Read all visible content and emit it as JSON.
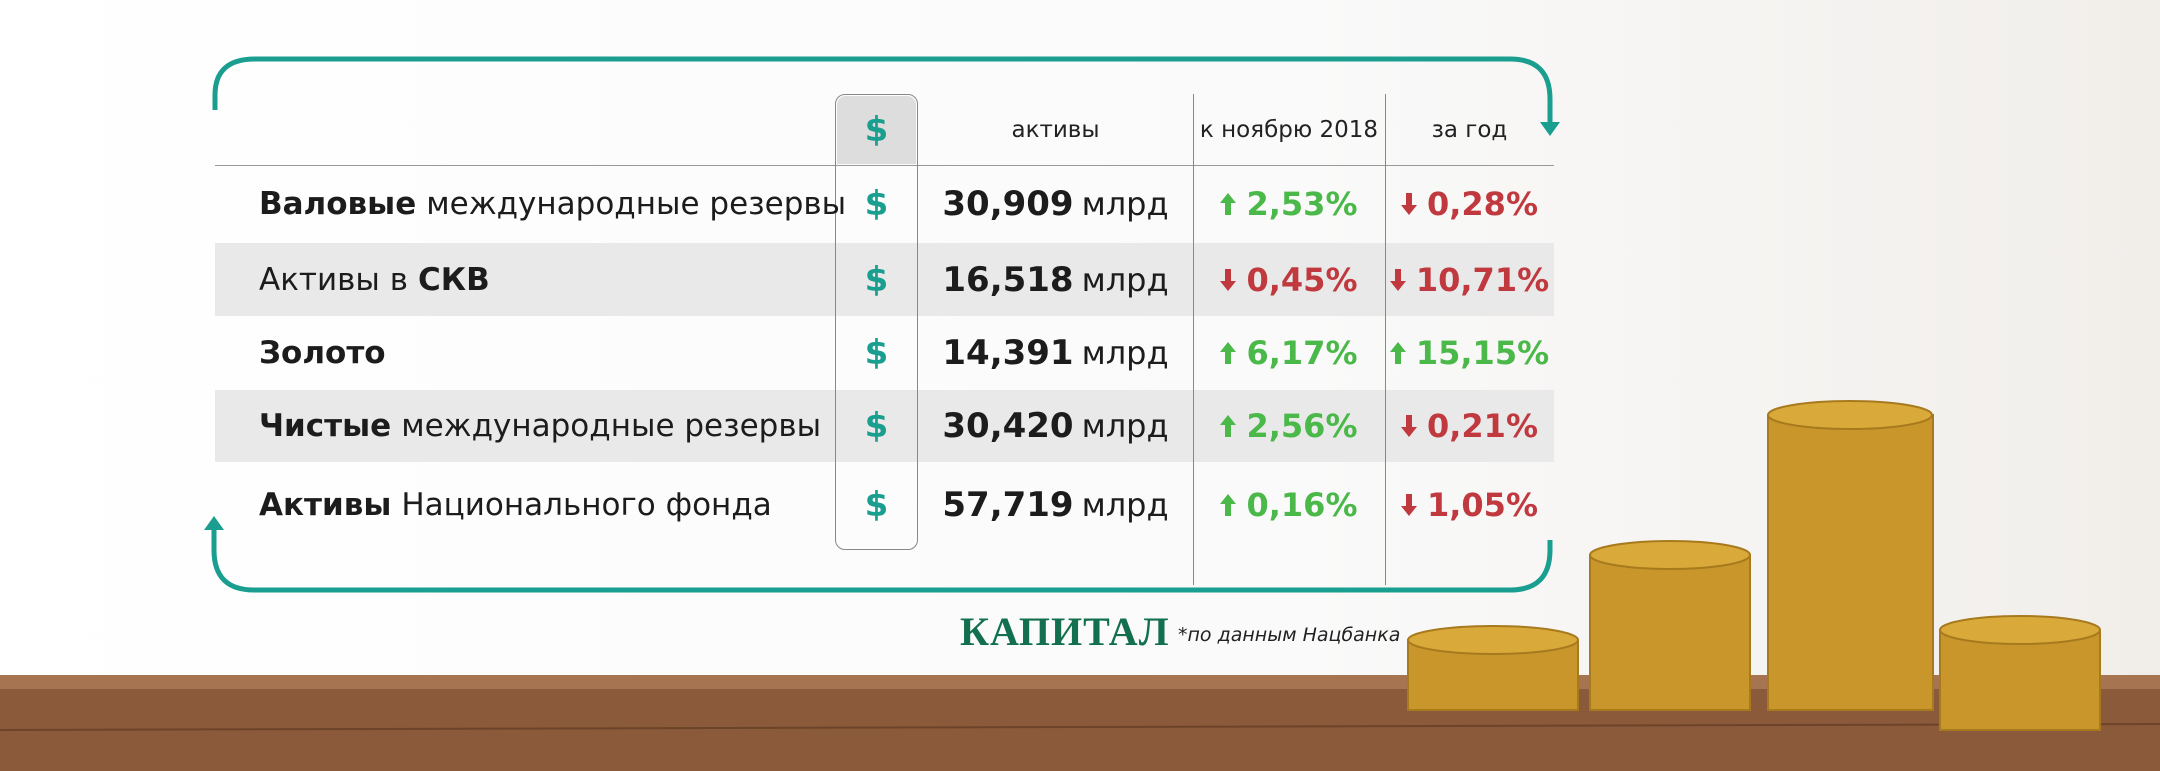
{
  "table": {
    "header": {
      "currency": "$",
      "columns": [
        "активы",
        "к ноябрю 2018",
        "за год"
      ]
    },
    "rows": [
      {
        "name": [
          {
            "text": "Валовые",
            "bold": true
          },
          {
            "text": "международные резервы",
            "bold": false
          }
        ],
        "icon": "$",
        "value": "30,909",
        "unit": "млрд",
        "month": {
          "text": "2,53%",
          "direction": "up"
        },
        "year": {
          "text": "0,28%",
          "direction": "down"
        }
      },
      {
        "name": [
          {
            "text": "Активы в",
            "bold": false
          },
          {
            "text": "СКВ",
            "bold": true
          }
        ],
        "icon": "$",
        "value": "16,518",
        "unit": "млрд",
        "month": {
          "text": "0,45%",
          "direction": "down"
        },
        "year": {
          "text": "10,71%",
          "direction": "down"
        }
      },
      {
        "name": [
          {
            "text": "Золото",
            "bold": true
          }
        ],
        "icon": "$",
        "value": "14,391",
        "unit": "млрд",
        "month": {
          "text": "6,17%",
          "direction": "up"
        },
        "year": {
          "text": "15,15%",
          "direction": "up"
        }
      },
      {
        "name": [
          {
            "text": "Чистые",
            "bold": true
          },
          {
            "text": "международные резервы",
            "bold": false
          }
        ],
        "icon": "$",
        "value": "30,420",
        "unit": "млрд",
        "month": {
          "text": "2,56%",
          "direction": "up"
        },
        "year": {
          "text": "0,21%",
          "direction": "down"
        }
      },
      {
        "name": [
          {
            "text": "Активы",
            "bold": true
          },
          {
            "text": "Национального фонда",
            "bold": false
          }
        ],
        "icon": "$",
        "value": "57,719",
        "unit": "млрд",
        "month": {
          "text": "0,16%",
          "direction": "up"
        },
        "year": {
          "text": "1,05%",
          "direction": "down"
        }
      }
    ]
  },
  "footer": {
    "logo": "КАПИТАЛ",
    "note": "*по данным Нацбанка"
  }
}
